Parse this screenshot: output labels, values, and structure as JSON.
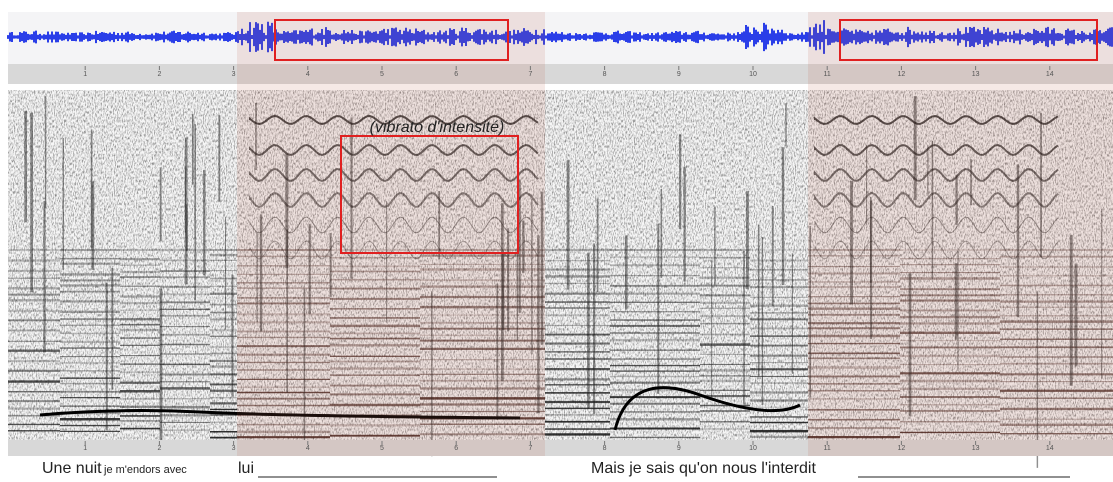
{
  "ruler": {
    "top_ticks": [
      1,
      2,
      3,
      4,
      5,
      6,
      7,
      8,
      9,
      10,
      11,
      12,
      13,
      14
    ],
    "bottom_ticks": [
      1,
      2,
      3,
      4,
      5,
      6,
      7,
      8,
      9,
      10,
      11,
      12,
      13,
      14
    ]
  },
  "annotation": "(vibrato d'intensité)",
  "lyrics": {
    "line1": {
      "part1": "Une nuit",
      "part2": "je m'endors avec",
      "part3": "lui"
    },
    "line2": "Mais je sais qu'on nous l'interdit"
  }
}
